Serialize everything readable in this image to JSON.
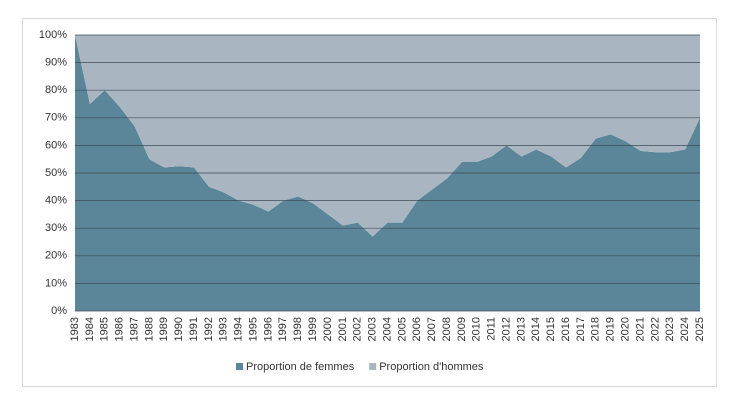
{
  "chart_data": {
    "type": "stacked_area",
    "categories": [
      "1983",
      "1984",
      "1985",
      "1986",
      "1987",
      "1988",
      "1989",
      "1990",
      "1991",
      "1992",
      "1993",
      "1994",
      "1995",
      "1996",
      "1997",
      "1998",
      "1999",
      "2000",
      "2001",
      "2002",
      "2003",
      "2004",
      "2005",
      "2006",
      "2007",
      "2008",
      "2009",
      "2010",
      "2011",
      "2012",
      "2013",
      "2014",
      "2015",
      "2016",
      "2017",
      "2018",
      "2019",
      "2020",
      "2021",
      "2022",
      "2023",
      "2024",
      "2025"
    ],
    "series": [
      {
        "name": "Proportion de femmes",
        "color": "#5b8599",
        "values": [
          100,
          75,
          80,
          74,
          67,
          55,
          52,
          52.5,
          52,
          45,
          43,
          40,
          38.5,
          36,
          40,
          41.5,
          39,
          35,
          31,
          32,
          27,
          32,
          32,
          40,
          44,
          48,
          54,
          54,
          56,
          60,
          56,
          58.5,
          56,
          52,
          55.5,
          62.5,
          64,
          61.5,
          58,
          57.5,
          57.5,
          58.5,
          70
        ]
      },
      {
        "name": "Proportion d'hommes",
        "color": "#a9b6c1",
        "values": [
          0,
          25,
          20,
          26,
          33,
          45,
          48,
          47.5,
          48,
          55,
          57,
          60,
          61.5,
          64,
          60,
          58.5,
          61,
          65,
          69,
          68,
          73,
          68,
          68,
          60,
          56,
          52,
          46,
          46,
          44,
          40,
          44,
          41.5,
          44,
          48,
          44.5,
          37.5,
          36,
          38.5,
          42,
          42.5,
          42.5,
          41.5,
          30
        ]
      }
    ],
    "ylim": [
      0,
      100
    ],
    "yticks": [
      {
        "value": 0,
        "label": "0%"
      },
      {
        "value": 10,
        "label": "10%"
      },
      {
        "value": 20,
        "label": "20%"
      },
      {
        "value": 30,
        "label": "30%"
      },
      {
        "value": 40,
        "label": "40%"
      },
      {
        "value": 50,
        "label": "50%"
      },
      {
        "value": 60,
        "label": "60%"
      },
      {
        "value": 70,
        "label": "70%"
      },
      {
        "value": 80,
        "label": "80%"
      },
      {
        "value": 90,
        "label": "90%"
      },
      {
        "value": 100,
        "label": "100%"
      }
    ],
    "grid": true,
    "legend": "bottom"
  }
}
